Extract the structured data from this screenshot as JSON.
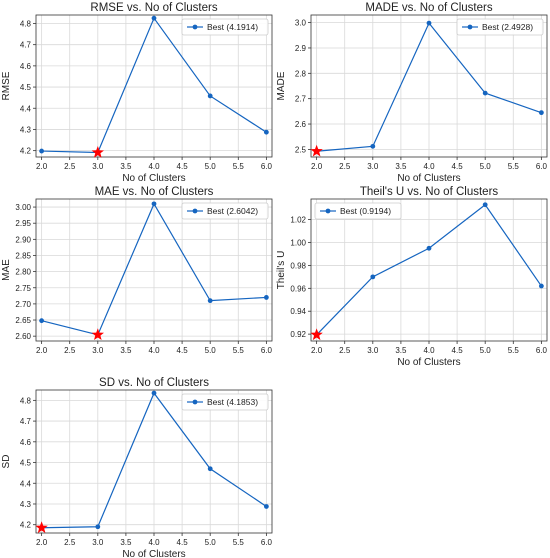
{
  "chart_data": [
    {
      "type": "line",
      "title": "RMSE vs. No of Clusters",
      "xlabel": "No of Clusters",
      "ylabel": "RMSE",
      "x": [
        2.0,
        3.0,
        4.0,
        5.0,
        6.0
      ],
      "x_ticks": [
        "2.0",
        "2.5",
        "3.0",
        "3.5",
        "4.0",
        "4.5",
        "5.0",
        "5.5",
        "6.0"
      ],
      "y_ticks": [
        "4.2",
        "4.3",
        "4.4",
        "4.5",
        "4.6",
        "4.7",
        "4.8"
      ],
      "xlim": [
        1.9,
        6.1
      ],
      "ylim": [
        4.17,
        4.84
      ],
      "grid": true,
      "legend_position": "top-right",
      "series": [
        {
          "name": "Best (4.1914)",
          "values": [
            4.198,
            4.1914,
            4.825,
            4.458,
            4.287
          ],
          "color": "#1565c0"
        }
      ],
      "best": {
        "x": 3.0,
        "y": 4.1914,
        "marker": "star",
        "color": "#ff0000"
      }
    },
    {
      "type": "line",
      "title": "MADE vs. No of Clusters",
      "xlabel": "No of Clusters",
      "ylabel": "MADE",
      "x": [
        2.0,
        3.0,
        4.0,
        5.0,
        6.0
      ],
      "x_ticks": [
        "2.0",
        "2.5",
        "3.0",
        "3.5",
        "4.0",
        "4.5",
        "5.0",
        "5.5",
        "6.0"
      ],
      "y_ticks": [
        "2.5",
        "2.6",
        "2.7",
        "2.8",
        "2.9",
        "3.0"
      ],
      "xlim": [
        1.9,
        6.1
      ],
      "ylim": [
        2.47,
        3.03
      ],
      "grid": true,
      "legend_position": "top-right",
      "series": [
        {
          "name": "Best (2.4928)",
          "values": [
            2.4928,
            2.512,
            2.998,
            2.722,
            2.645
          ],
          "color": "#1565c0"
        }
      ],
      "best": {
        "x": 2.0,
        "y": 2.4928,
        "marker": "star",
        "color": "#ff0000"
      }
    },
    {
      "type": "line",
      "title": "MAE vs. No of Clusters",
      "xlabel": "",
      "ylabel": "MAE",
      "x": [
        2.0,
        3.0,
        4.0,
        5.0,
        6.0
      ],
      "x_ticks": [
        "2.0",
        "2.5",
        "3.0",
        "3.5",
        "4.0",
        "4.5",
        "5.0",
        "5.5",
        "6.0"
      ],
      "y_ticks": [
        "2.60",
        "2.65",
        "2.70",
        "2.75",
        "2.80",
        "2.85",
        "2.90",
        "2.95",
        "3.00"
      ],
      "xlim": [
        1.9,
        6.1
      ],
      "ylim": [
        2.585,
        3.025
      ],
      "grid": true,
      "legend_position": "top-right",
      "series": [
        {
          "name": "Best (2.6042)",
          "values": [
            2.648,
            2.6042,
            3.01,
            2.71,
            2.72
          ],
          "color": "#1565c0"
        }
      ],
      "best": {
        "x": 3.0,
        "y": 2.6042,
        "marker": "star",
        "color": "#ff0000"
      }
    },
    {
      "type": "line",
      "title": "Theil's U vs. No of Clusters",
      "xlabel": "No of Clusters",
      "ylabel": "Theil's U",
      "x": [
        2.0,
        3.0,
        4.0,
        5.0,
        6.0
      ],
      "x_ticks": [
        "2.0",
        "2.5",
        "3.0",
        "3.5",
        "4.0",
        "4.5",
        "5.0",
        "5.5",
        "6.0"
      ],
      "y_ticks": [
        "0.92",
        "0.94",
        "0.96",
        "0.98",
        "1.00",
        "1.02"
      ],
      "xlim": [
        1.9,
        6.1
      ],
      "ylim": [
        0.914,
        1.038
      ],
      "grid": true,
      "legend_position": "top-left",
      "series": [
        {
          "name": "Best (0.9194)",
          "values": [
            0.9194,
            0.97,
            0.995,
            1.033,
            0.962
          ],
          "color": "#1565c0"
        }
      ],
      "best": {
        "x": 2.0,
        "y": 0.9194,
        "marker": "star",
        "color": "#ff0000"
      }
    },
    {
      "type": "line",
      "title": "SD vs. No of Clusters",
      "xlabel": "No of Clusters",
      "ylabel": "SD",
      "x": [
        2.0,
        3.0,
        4.0,
        5.0,
        6.0
      ],
      "x_ticks": [
        "2.0",
        "2.5",
        "3.0",
        "3.5",
        "4.0",
        "4.5",
        "5.0",
        "5.5",
        "6.0"
      ],
      "y_ticks": [
        "4.2",
        "4.3",
        "4.4",
        "4.5",
        "4.6",
        "4.7",
        "4.8"
      ],
      "xlim": [
        1.9,
        6.1
      ],
      "ylim": [
        4.16,
        4.85
      ],
      "grid": true,
      "legend_position": "top-right",
      "series": [
        {
          "name": "Best (4.1853)",
          "values": [
            4.1853,
            4.19,
            4.835,
            4.47,
            4.288
          ],
          "color": "#1565c0"
        }
      ],
      "best": {
        "x": 2.0,
        "y": 4.1853,
        "marker": "star",
        "color": "#ff0000"
      }
    }
  ]
}
